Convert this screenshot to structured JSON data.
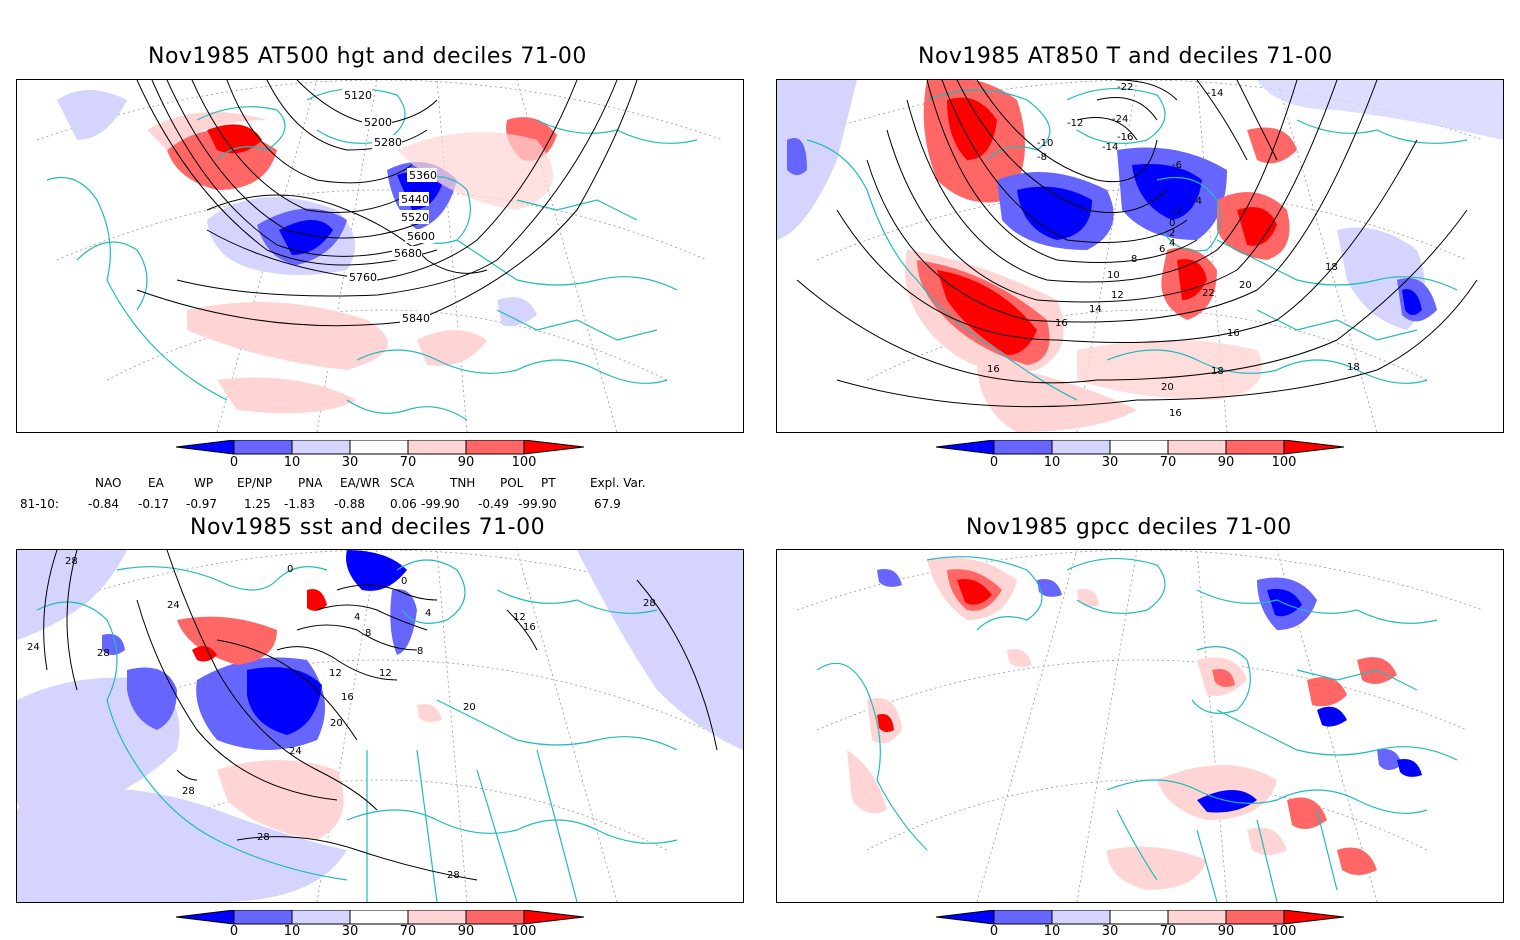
{
  "panels": [
    {
      "id": "at500",
      "title": "Nov1985 AT500 hgt and deciles 71-00",
      "contour_labels": [
        "5120",
        "5200",
        "5280",
        "5360",
        "5440",
        "5520",
        "5600",
        "5680",
        "5760",
        "5840"
      ]
    },
    {
      "id": "at850",
      "title": "Nov1985 AT850 T and deciles 71-00",
      "contour_labels": [
        "-22",
        "-14",
        "-12",
        "-10",
        "-8",
        "-24",
        "-16",
        "-14",
        "-6",
        "-4",
        "-2",
        "0",
        "2",
        "4",
        "6",
        "8",
        "10",
        "12",
        "14",
        "16",
        "18",
        "20",
        "22",
        "16",
        "18",
        "20",
        "18",
        "16",
        "16"
      ]
    },
    {
      "id": "sst",
      "title": "Nov1985 sst and deciles 71-00",
      "contour_labels": [
        "28",
        "24",
        "24",
        "28",
        "0",
        "0",
        "4",
        "8",
        "12",
        "12",
        "16",
        "20",
        "20",
        "24",
        "28",
        "28",
        "28",
        "28",
        "16",
        "12",
        "8",
        "4"
      ]
    },
    {
      "id": "gpcc",
      "title": "Nov1985 gpcc deciles 71-00",
      "contour_labels": []
    }
  ],
  "colorbar": {
    "ticks": [
      "0",
      "10",
      "30",
      "70",
      "90",
      "100"
    ],
    "colors": {
      "deep_blue": "#0000ff",
      "mid_blue": "#6666ff",
      "light_blue": "#d4d4ff",
      "white": "#ffffff",
      "light_red": "#ffd4d4",
      "mid_red": "#ff6666",
      "deep_red": "#ff0000"
    }
  },
  "indices": {
    "headers": [
      "NAO",
      "EA",
      "WP",
      "EP/NP",
      "PNA",
      "EA/WR",
      "SCA",
      "TNH",
      "POL",
      "PT",
      "Expl. Var."
    ],
    "row_label": "81-10:",
    "values": [
      "-0.84",
      "-0.17",
      "-0.97",
      "1.25",
      "-1.83",
      "-0.88",
      "0.06",
      "-99.90",
      "-0.49",
      "-99.90",
      "67.9"
    ]
  },
  "style": {
    "coast_color": "#22bbbb",
    "contour_color": "#000000"
  }
}
